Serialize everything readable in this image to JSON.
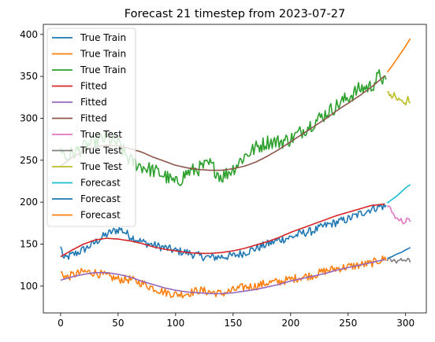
{
  "chart_data": {
    "type": "line",
    "title": "Forecast 21 timestep from 2023-07-27",
    "xlabel": "",
    "ylabel": "",
    "xlim": [
      -15,
      318
    ],
    "ylim": [
      68,
      412
    ],
    "x_ticks": [
      0,
      50,
      100,
      150,
      200,
      250,
      300
    ],
    "y_ticks": [
      100,
      150,
      200,
      250,
      300,
      350,
      400
    ],
    "grid": false,
    "legend_position": "upper-left",
    "series": [
      {
        "name": "True Train",
        "color": "#1f77b4",
        "kind": "true_train",
        "x_range": [
          0,
          283
        ],
        "points": [
          [
            0,
            147
          ],
          [
            3,
            132
          ],
          [
            8,
            136
          ],
          [
            15,
            140
          ],
          [
            22,
            145
          ],
          [
            30,
            152
          ],
          [
            38,
            160
          ],
          [
            45,
            165
          ],
          [
            52,
            168
          ],
          [
            60,
            160
          ],
          [
            70,
            153
          ],
          [
            80,
            149
          ],
          [
            90,
            146
          ],
          [
            100,
            142
          ],
          [
            110,
            140
          ],
          [
            120,
            136
          ],
          [
            130,
            134
          ],
          [
            140,
            135
          ],
          [
            150,
            136
          ],
          [
            160,
            140
          ],
          [
            170,
            145
          ],
          [
            180,
            150
          ],
          [
            190,
            155
          ],
          [
            200,
            158
          ],
          [
            210,
            163
          ],
          [
            220,
            166
          ],
          [
            230,
            172
          ],
          [
            240,
            176
          ],
          [
            250,
            180
          ],
          [
            260,
            186
          ],
          [
            270,
            192
          ],
          [
            278,
            195
          ],
          [
            283,
            195
          ]
        ]
      },
      {
        "name": "True Train",
        "color": "#ff7f0e",
        "kind": "true_train",
        "x_range": [
          0,
          283
        ],
        "points": [
          [
            0,
            117
          ],
          [
            5,
            110
          ],
          [
            10,
            113
          ],
          [
            20,
            117
          ],
          [
            30,
            116
          ],
          [
            40,
            112
          ],
          [
            50,
            108
          ],
          [
            60,
            108
          ],
          [
            70,
            104
          ],
          [
            80,
            98
          ],
          [
            90,
            93
          ],
          [
            100,
            90
          ],
          [
            110,
            91
          ],
          [
            120,
            95
          ],
          [
            130,
            93
          ],
          [
            140,
            91
          ],
          [
            150,
            95
          ],
          [
            160,
            99
          ],
          [
            170,
            100
          ],
          [
            180,
            104
          ],
          [
            190,
            105
          ],
          [
            200,
            108
          ],
          [
            210,
            111
          ],
          [
            220,
            113
          ],
          [
            230,
            118
          ],
          [
            240,
            121
          ],
          [
            250,
            123
          ],
          [
            260,
            125
          ],
          [
            270,
            127
          ],
          [
            278,
            131
          ],
          [
            283,
            133
          ]
        ]
      },
      {
        "name": "True Train",
        "color": "#2ca02c",
        "kind": "true_train",
        "x_range": [
          0,
          283
        ],
        "points": [
          [
            0,
            265
          ],
          [
            5,
            252
          ],
          [
            10,
            258
          ],
          [
            20,
            265
          ],
          [
            30,
            272
          ],
          [
            40,
            276
          ],
          [
            50,
            270
          ],
          [
            60,
            250
          ],
          [
            70,
            243
          ],
          [
            80,
            238
          ],
          [
            90,
            232
          ],
          [
            100,
            222
          ],
          [
            110,
            235
          ],
          [
            120,
            240
          ],
          [
            130,
            245
          ],
          [
            140,
            230
          ],
          [
            150,
            240
          ],
          [
            160,
            255
          ],
          [
            170,
            265
          ],
          [
            180,
            272
          ],
          [
            190,
            272
          ],
          [
            200,
            275
          ],
          [
            210,
            285
          ],
          [
            220,
            295
          ],
          [
            230,
            305
          ],
          [
            240,
            315
          ],
          [
            250,
            325
          ],
          [
            260,
            335
          ],
          [
            270,
            338
          ],
          [
            278,
            352
          ],
          [
            283,
            340
          ]
        ]
      },
      {
        "name": "Fitted",
        "color": "#d62728",
        "kind": "fitted",
        "x_range": [
          0,
          283
        ],
        "points": [
          [
            0,
            135
          ],
          [
            10,
            143
          ],
          [
            20,
            150
          ],
          [
            30,
            155
          ],
          [
            40,
            157
          ],
          [
            50,
            156
          ],
          [
            60,
            154
          ],
          [
            70,
            151
          ],
          [
            80,
            147
          ],
          [
            90,
            144
          ],
          [
            100,
            142
          ],
          [
            110,
            140
          ],
          [
            120,
            139
          ],
          [
            130,
            139
          ],
          [
            140,
            140
          ],
          [
            150,
            142
          ],
          [
            160,
            145
          ],
          [
            170,
            149
          ],
          [
            180,
            153
          ],
          [
            190,
            158
          ],
          [
            200,
            164
          ],
          [
            210,
            169
          ],
          [
            220,
            174
          ],
          [
            230,
            179
          ],
          [
            240,
            184
          ],
          [
            250,
            188
          ],
          [
            260,
            192
          ],
          [
            270,
            196
          ],
          [
            283,
            198
          ]
        ]
      },
      {
        "name": "Fitted",
        "color": "#9467bd",
        "kind": "fitted",
        "x_range": [
          0,
          283
        ],
        "points": [
          [
            0,
            107
          ],
          [
            10,
            111
          ],
          [
            20,
            114
          ],
          [
            30,
            116
          ],
          [
            40,
            116
          ],
          [
            50,
            114
          ],
          [
            60,
            111
          ],
          [
            70,
            106
          ],
          [
            80,
            102
          ],
          [
            90,
            98
          ],
          [
            100,
            95
          ],
          [
            110,
            93
          ],
          [
            120,
            92
          ],
          [
            130,
            91
          ],
          [
            140,
            91
          ],
          [
            150,
            92
          ],
          [
            160,
            94
          ],
          [
            170,
            96
          ],
          [
            180,
            99
          ],
          [
            190,
            102
          ],
          [
            200,
            106
          ],
          [
            210,
            109
          ],
          [
            220,
            112
          ],
          [
            230,
            115
          ],
          [
            240,
            119
          ],
          [
            250,
            122
          ],
          [
            260,
            125
          ],
          [
            270,
            128
          ],
          [
            283,
            132
          ]
        ]
      },
      {
        "name": "Fitted",
        "color": "#8c564b",
        "kind": "fitted",
        "x_range": [
          0,
          283
        ],
        "points": [
          [
            0,
            243
          ],
          [
            10,
            253
          ],
          [
            20,
            261
          ],
          [
            30,
            266
          ],
          [
            40,
            268
          ],
          [
            50,
            267
          ],
          [
            60,
            264
          ],
          [
            70,
            260
          ],
          [
            80,
            254
          ],
          [
            90,
            249
          ],
          [
            100,
            244
          ],
          [
            110,
            241
          ],
          [
            120,
            239
          ],
          [
            130,
            238
          ],
          [
            140,
            238
          ],
          [
            150,
            240
          ],
          [
            160,
            243
          ],
          [
            170,
            248
          ],
          [
            180,
            255
          ],
          [
            190,
            263
          ],
          [
            200,
            272
          ],
          [
            210,
            281
          ],
          [
            220,
            290
          ],
          [
            230,
            299
          ],
          [
            240,
            309
          ],
          [
            250,
            318
          ],
          [
            260,
            327
          ],
          [
            270,
            337
          ],
          [
            283,
            352
          ]
        ]
      },
      {
        "name": "True Test",
        "color": "#e377c2",
        "kind": "true_test",
        "x_range": [
          284,
          304
        ],
        "points": [
          [
            284,
            194
          ],
          [
            286,
            196
          ],
          [
            288,
            188
          ],
          [
            290,
            184
          ],
          [
            292,
            181
          ],
          [
            294,
            178
          ],
          [
            296,
            179
          ],
          [
            298,
            175
          ],
          [
            300,
            178
          ],
          [
            302,
            182
          ],
          [
            304,
            176
          ]
        ]
      },
      {
        "name": "True Test",
        "color": "#7f7f7f",
        "kind": "true_test",
        "x_range": [
          284,
          304
        ],
        "points": [
          [
            284,
            130
          ],
          [
            286,
            133
          ],
          [
            288,
            131
          ],
          [
            290,
            133
          ],
          [
            292,
            129
          ],
          [
            294,
            131
          ],
          [
            296,
            132
          ],
          [
            298,
            130
          ],
          [
            300,
            131
          ],
          [
            302,
            134
          ],
          [
            304,
            130
          ]
        ]
      },
      {
        "name": "True Test",
        "color": "#bcbd22",
        "kind": "true_test",
        "x_range": [
          284,
          304
        ],
        "points": [
          [
            284,
            332
          ],
          [
            286,
            328
          ],
          [
            288,
            326
          ],
          [
            290,
            329
          ],
          [
            292,
            323
          ],
          [
            294,
            322
          ],
          [
            296,
            320
          ],
          [
            298,
            318
          ],
          [
            300,
            315
          ],
          [
            302,
            325
          ],
          [
            304,
            318
          ]
        ]
      },
      {
        "name": "Forecast",
        "color": "#17becf",
        "kind": "forecast",
        "x_range": [
          284,
          304
        ],
        "points": [
          [
            284,
            199
          ],
          [
            288,
            203
          ],
          [
            292,
            207
          ],
          [
            296,
            212
          ],
          [
            300,
            217
          ],
          [
            304,
            221
          ]
        ]
      },
      {
        "name": "Forecast",
        "color": "#1f77b4",
        "kind": "forecast",
        "x_range": [
          284,
          304
        ],
        "points": [
          [
            284,
            133
          ],
          [
            288,
            135
          ],
          [
            292,
            138
          ],
          [
            296,
            140
          ],
          [
            300,
            143
          ],
          [
            304,
            146
          ]
        ]
      },
      {
        "name": "Forecast",
        "color": "#ff7f0e",
        "kind": "forecast",
        "x_range": [
          284,
          304
        ],
        "points": [
          [
            284,
            355
          ],
          [
            288,
            362
          ],
          [
            292,
            370
          ],
          [
            296,
            378
          ],
          [
            300,
            386
          ],
          [
            304,
            395
          ]
        ]
      }
    ]
  }
}
